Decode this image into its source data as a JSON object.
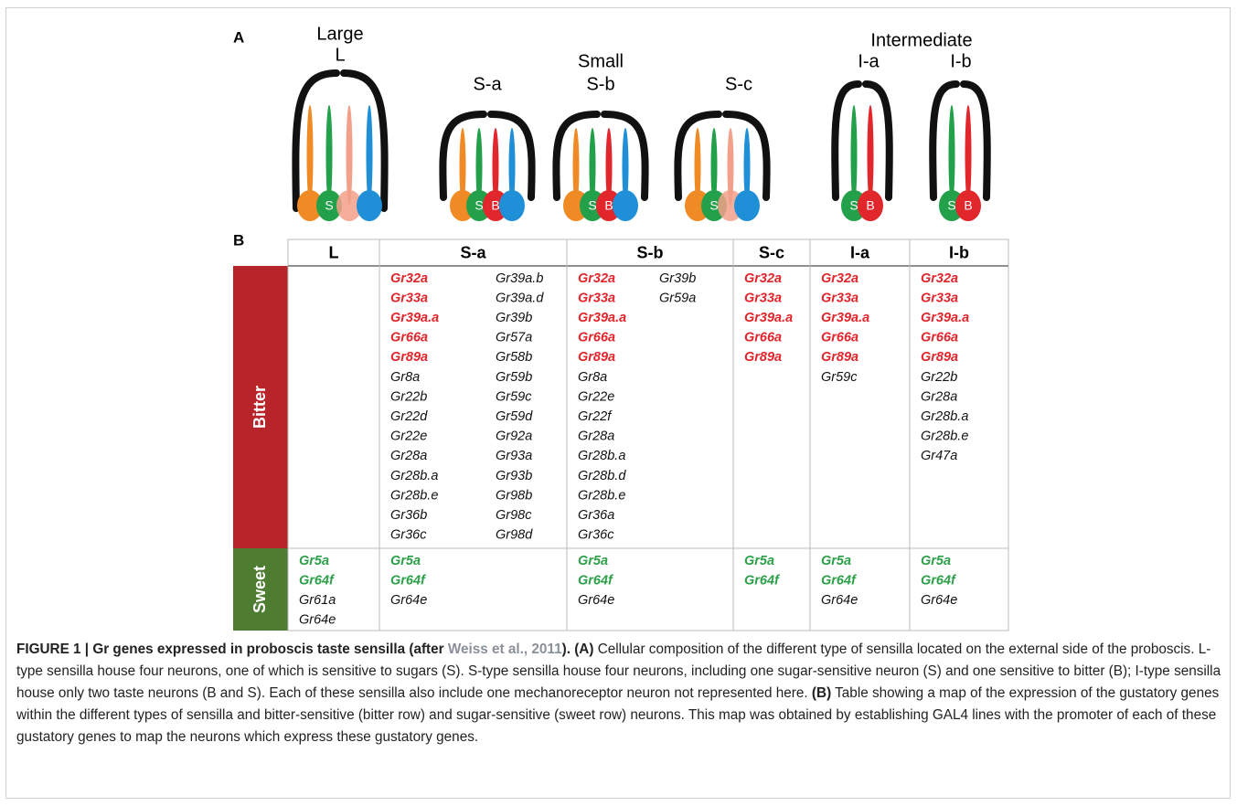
{
  "panel_a": {
    "label": "A",
    "group_labels": [
      "Large",
      "Small",
      "Intermediate"
    ],
    "sensilla": [
      {
        "name": "L",
        "labels": [
          "S"
        ]
      },
      {
        "name": "S-a",
        "labels": [
          "S",
          "B"
        ]
      },
      {
        "name": "S-b",
        "labels": [
          "S",
          "B"
        ]
      },
      {
        "name": "S-c",
        "labels": [
          "S"
        ]
      },
      {
        "name": "I-a",
        "labels": [
          "S",
          "B"
        ]
      },
      {
        "name": "I-b",
        "labels": [
          "S",
          "B"
        ]
      }
    ]
  },
  "panel_b": {
    "label": "B",
    "columns": [
      "L",
      "S-a",
      "S-b",
      "S-c",
      "I-a",
      "I-b"
    ],
    "rows": [
      {
        "label": "Bitter",
        "color": "#b7252b",
        "gene_color": "#e1262c",
        "cells": [
          {
            "colored": [],
            "plain": [],
            "second_column": []
          },
          {
            "colored": [
              "Gr32a",
              "Gr33a",
              "Gr39a.a",
              "Gr66a",
              "Gr89a"
            ],
            "plain": [
              "Gr8a",
              "Gr22b",
              "Gr22d",
              "Gr22e",
              "Gr28a",
              "Gr28b.a",
              "Gr28b.e",
              "Gr36b",
              "Gr36c"
            ],
            "second_column": [
              "Gr39a.b",
              "Gr39a.d",
              "Gr39b",
              "Gr57a",
              "Gr58b",
              "Gr59b",
              "Gr59c",
              "Gr59d",
              "Gr92a",
              "Gr93a",
              "Gr93b",
              "Gr98b",
              "Gr98c",
              "Gr98d"
            ]
          },
          {
            "colored": [
              "Gr32a",
              "Gr33a",
              "Gr39a.a",
              "Gr66a",
              "Gr89a"
            ],
            "plain": [
              "Gr8a",
              "Gr22e",
              "Gr22f",
              "Gr28a",
              "Gr28b.a",
              "Gr28b.d",
              "Gr28b.e",
              "Gr36a",
              "Gr36c"
            ],
            "second_column": [
              "Gr39b",
              "Gr59a"
            ]
          },
          {
            "colored": [
              "Gr32a",
              "Gr33a",
              "Gr39a.a",
              "Gr66a",
              "Gr89a"
            ],
            "plain": [],
            "second_column": []
          },
          {
            "colored": [
              "Gr32a",
              "Gr33a",
              "Gr39a.a",
              "Gr66a",
              "Gr89a"
            ],
            "plain": [
              "Gr59c"
            ],
            "second_column": []
          },
          {
            "colored": [
              "Gr32a",
              "Gr33a",
              "Gr39a.a",
              "Gr66a",
              "Gr89a"
            ],
            "plain": [
              "Gr22b",
              "Gr28a",
              "Gr28b.a",
              "Gr28b.e",
              "Gr47a"
            ],
            "second_column": []
          }
        ]
      },
      {
        "label": "Sweet",
        "color": "#4e7d32",
        "gene_color": "#2ea04a",
        "cells": [
          {
            "colored": [
              "Gr5a",
              "Gr64f"
            ],
            "plain": [
              "Gr61a",
              "Gr64e"
            ],
            "second_column": []
          },
          {
            "colored": [
              "Gr5a",
              "Gr64f"
            ],
            "plain": [
              "Gr64e"
            ],
            "second_column": []
          },
          {
            "colored": [
              "Gr5a",
              "Gr64f"
            ],
            "plain": [
              "Gr64e"
            ],
            "second_column": []
          },
          {
            "colored": [
              "Gr5a",
              "Gr64f"
            ],
            "plain": [],
            "second_column": []
          },
          {
            "colored": [
              "Gr5a",
              "Gr64f"
            ],
            "plain": [
              "Gr64e"
            ],
            "second_column": []
          },
          {
            "colored": [
              "Gr5a",
              "Gr64f"
            ],
            "plain": [
              "Gr64e"
            ],
            "second_column": []
          }
        ]
      }
    ]
  },
  "caption": {
    "title_start": "FIGURE 1 | Gr genes expressed in proboscis taste sensilla (after",
    "citation": "Weiss et al., 2011",
    "title_end": "). (A)",
    "text_a": "Cellular composition of the different type of sensilla located on the external side of the proboscis. L-type sensilla house four neurons, one of which is sensitive to sugars (S). S-type sensilla house four neurons, including one sugar-sensitive neuron (S) and one sensitive to bitter (B); I-type sensilla house only two taste neurons (B and S). Each of these sensilla also include one mechanoreceptor neuron not represented here.",
    "label_b": "(B)",
    "text_b": "Table showing a map of the expression of the gustatory genes within the different types of sensilla and bitter-sensitive (bitter row) and sugar-sensitive (sweet row) neurons. This map was obtained by establishing GAL4 lines with the promoter of each of these gustatory genes to map the neurons which express these gustatory genes."
  }
}
